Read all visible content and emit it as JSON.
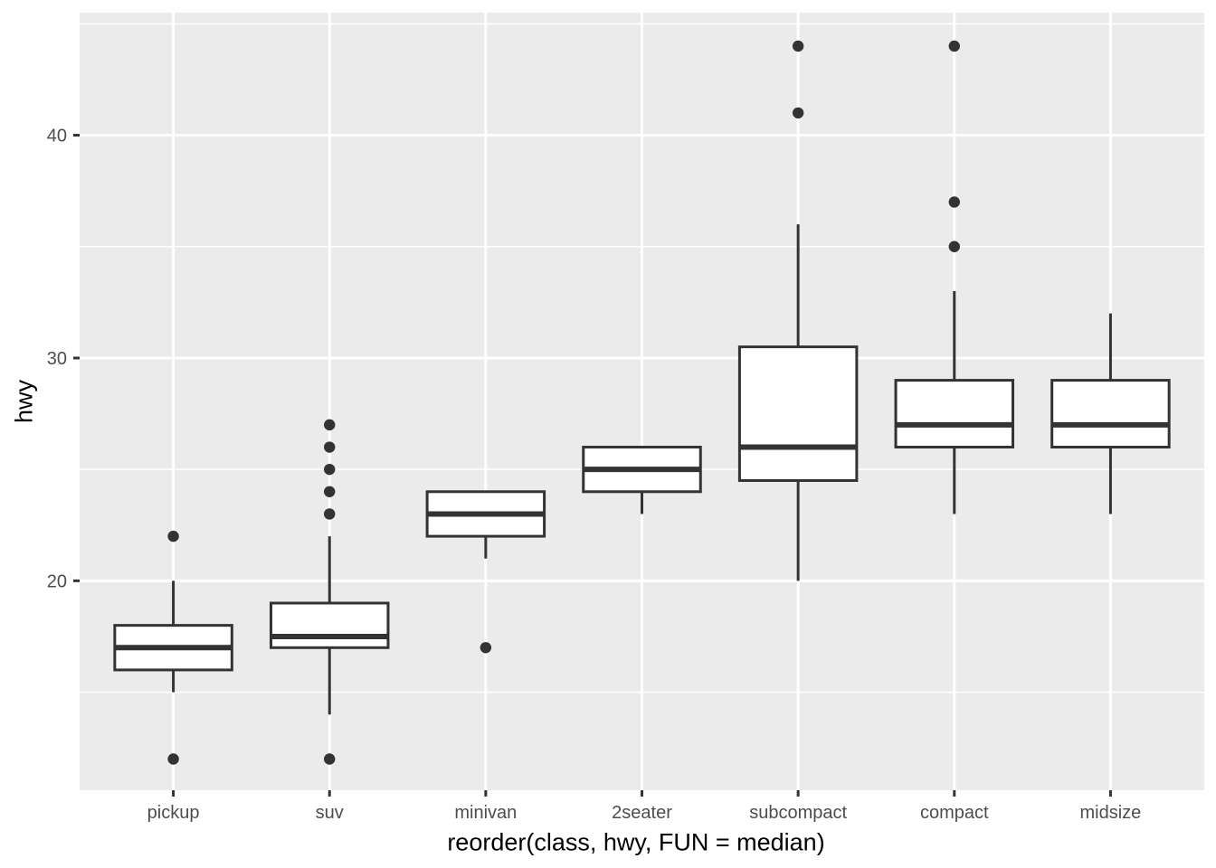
{
  "chart_data": {
    "type": "boxplot",
    "title": "",
    "xlabel": "reorder(class, hwy, FUN = median)",
    "ylabel": "hwy",
    "categories": [
      "pickup",
      "suv",
      "minivan",
      "2seater",
      "subcompact",
      "compact",
      "midsize"
    ],
    "series": [
      {
        "category": "pickup",
        "lower_whisker": 15,
        "q1": 16,
        "median": 17,
        "q3": 18,
        "upper_whisker": 20,
        "outliers": [
          12,
          22
        ]
      },
      {
        "category": "suv",
        "lower_whisker": 14,
        "q1": 17,
        "median": 17.5,
        "q3": 19,
        "upper_whisker": 22,
        "outliers": [
          12,
          23,
          24,
          25,
          26,
          27
        ]
      },
      {
        "category": "minivan",
        "lower_whisker": 21,
        "q1": 22,
        "median": 23,
        "q3": 24,
        "upper_whisker": 24,
        "outliers": [
          17
        ]
      },
      {
        "category": "2seater",
        "lower_whisker": 23,
        "q1": 24,
        "median": 25,
        "q3": 26,
        "upper_whisker": 26,
        "outliers": []
      },
      {
        "category": "subcompact",
        "lower_whisker": 20,
        "q1": 24.5,
        "median": 26,
        "q3": 30.5,
        "upper_whisker": 36,
        "outliers": [
          41,
          44
        ]
      },
      {
        "category": "compact",
        "lower_whisker": 23,
        "q1": 26,
        "median": 27,
        "q3": 29,
        "upper_whisker": 33,
        "outliers": [
          35,
          37,
          44
        ]
      },
      {
        "category": "midsize",
        "lower_whisker": 23,
        "q1": 26,
        "median": 27,
        "q3": 29,
        "upper_whisker": 32,
        "outliers": []
      }
    ],
    "y_axis": {
      "major_ticks": [
        20,
        30,
        40
      ],
      "minor_gridlines": [
        15,
        25,
        35,
        45
      ],
      "limits": [
        10.6,
        45.5
      ],
      "grid": true
    },
    "x_axis": {
      "tick_labels": [
        "pickup",
        "suv",
        "minivan",
        "2seater",
        "subcompact",
        "compact",
        "midsize"
      ]
    },
    "legend": "none",
    "style": {
      "figure_background": "#FFFFFF",
      "panel_background": "#EBEBEB",
      "grid_color": "#FFFFFF",
      "box_fill": "#FFFFFF",
      "box_stroke": "#333333",
      "outlier_color": "#333333",
      "tick_mark_color": "#333333",
      "tick_label_color": "#4D4D4D",
      "axis_title_color": "#000000"
    }
  }
}
